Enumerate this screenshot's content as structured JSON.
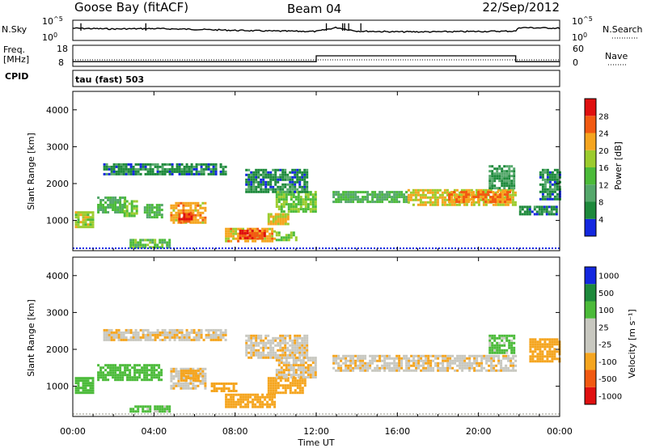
{
  "header": {
    "station": "Goose Bay (fitACF)",
    "beam": "Beam 04",
    "date": "22/Sep/2012"
  },
  "labels": {
    "nsky": "N.Sky",
    "nsearch": "N.Search",
    "freq": "Freq.",
    "mhz": "[MHz]",
    "nave": "Nave",
    "cpid": "CPID",
    "cpid_value": "tau (fast) 503",
    "ten": "10",
    "exp0": "0",
    "exp5": "^5",
    "freq_hi": "18",
    "freq_lo": "8",
    "nave_hi": "60",
    "nave_lo": "0",
    "xlabel": "Time UT",
    "power_cb_label": "Power [dB]",
    "velocity_cb_label": "Velocity [m s⁻¹]"
  },
  "colors": {
    "power_scale": [
      "#1428e0",
      "#1e8a3c",
      "#55a86b",
      "#4cbb3a",
      "#9ccc2e",
      "#f5a51f",
      "#f25a12",
      "#e01010"
    ],
    "velocity_scale": [
      "#e01010",
      "#f25a12",
      "#f5a51f",
      "#c8c8c0",
      "#c8c8c0",
      "#4cbb3a",
      "#1e8a3c",
      "#1428e0"
    ],
    "ground_scatter": "#c8c8c0"
  },
  "chart_data": [
    {
      "type": "line",
      "title": "N.Sky / N.Search",
      "x": [
        "00:00",
        "02:00",
        "04:00",
        "06:00",
        "08:00",
        "10:00",
        "12:00",
        "13:00",
        "14:00",
        "16:00",
        "18:00",
        "20:00",
        "21:50",
        "22:00",
        "24:00"
      ],
      "series": [
        {
          "name": "N.Sky",
          "log10_values": [
            3.2,
            3.0,
            3.1,
            2.9,
            2.6,
            2.4,
            2.3,
            3.4,
            2.4,
            2.2,
            2.2,
            2.3,
            2.4,
            3.4,
            3.2
          ]
        }
      ],
      "ylim_log10": [
        0,
        5
      ]
    },
    {
      "type": "line",
      "title": "Freq. / Nave",
      "series": [
        {
          "name": "Freq. [MHz]",
          "x": [
            "00:00",
            "12:00",
            "12:00",
            "21:50",
            "21:50",
            "24:00"
          ],
          "values": [
            10,
            10,
            13,
            13,
            10,
            10
          ]
        }
      ],
      "ylim": [
        8,
        18
      ]
    },
    {
      "type": "heatmap",
      "title": "Power",
      "xlabel": "Time UT",
      "ylabel": "Slant Range [km]",
      "xticks": [
        "00:00",
        "04:00",
        "08:00",
        "12:00",
        "16:00",
        "20:00",
        "00:00"
      ],
      "yticks": [
        1000,
        2000,
        3000,
        4000
      ],
      "xlim_hours": [
        0,
        24
      ],
      "ylim": [
        180,
        4500
      ],
      "colorbar": {
        "label": "Power [dB]",
        "ticks": [
          4,
          8,
          12,
          16,
          20,
          24,
          28
        ],
        "range": [
          0,
          32
        ]
      },
      "regions": [
        {
          "t0": 0.1,
          "t1": 1.0,
          "r0": 850,
          "r1": 1250,
          "level": 18
        },
        {
          "t0": 1.2,
          "t1": 2.6,
          "r0": 1250,
          "r1": 1650,
          "level": 12
        },
        {
          "t0": 2.5,
          "t1": 3.2,
          "r0": 1150,
          "r1": 1550,
          "level": 16
        },
        {
          "t0": 3.5,
          "t1": 4.4,
          "r0": 1100,
          "r1": 1450,
          "level": 12
        },
        {
          "t0": 4.8,
          "t1": 6.5,
          "r0": 950,
          "r1": 1500,
          "level": 22
        },
        {
          "t0": 5.2,
          "t1": 5.8,
          "r0": 1000,
          "r1": 1200,
          "level": 28
        },
        {
          "t0": 1.5,
          "t1": 7.5,
          "r0": 2250,
          "r1": 2550,
          "level": 6
        },
        {
          "t0": 2.8,
          "t1": 4.8,
          "r0": 280,
          "r1": 500,
          "level": 14
        },
        {
          "t0": 7.5,
          "t1": 10.0,
          "r0": 450,
          "r1": 800,
          "level": 22
        },
        {
          "t0": 8.2,
          "t1": 9.4,
          "r0": 550,
          "r1": 750,
          "level": 28
        },
        {
          "t0": 9.6,
          "t1": 10.6,
          "r0": 900,
          "r1": 1200,
          "level": 20
        },
        {
          "t0": 10.0,
          "t1": 11.0,
          "r0": 450,
          "r1": 700,
          "level": 16
        },
        {
          "t0": 10.0,
          "t1": 12.0,
          "r0": 1250,
          "r1": 1800,
          "level": 16
        },
        {
          "t0": 8.5,
          "t1": 11.5,
          "r0": 1800,
          "r1": 2400,
          "level": 6
        },
        {
          "t0": 12.8,
          "t1": 16.5,
          "r0": 1500,
          "r1": 1800,
          "level": 12
        },
        {
          "t0": 16.5,
          "t1": 21.8,
          "r0": 1450,
          "r1": 1850,
          "level": 20
        },
        {
          "t0": 18.5,
          "t1": 21.6,
          "r0": 1500,
          "r1": 1800,
          "level": 24
        },
        {
          "t0": 20.5,
          "t1": 21.8,
          "r0": 1900,
          "r1": 2500,
          "level": 8
        },
        {
          "t0": 22.0,
          "t1": 23.9,
          "r0": 1200,
          "r1": 1400,
          "level": 6
        },
        {
          "t0": 23.0,
          "t1": 24.0,
          "r0": 1600,
          "r1": 2400,
          "level": 6
        }
      ]
    },
    {
      "type": "heatmap",
      "title": "Velocity",
      "xlabel": "Time UT",
      "ylabel": "Slant Range [km]",
      "xticks": [
        "00:00",
        "04:00",
        "08:00",
        "12:00",
        "16:00",
        "20:00",
        "00:00"
      ],
      "yticks": [
        1000,
        2000,
        3000,
        4000
      ],
      "xlim_hours": [
        0,
        24
      ],
      "ylim": [
        180,
        4500
      ],
      "colorbar": {
        "label": "Velocity [m s⁻¹]",
        "ticks": [
          1000,
          500,
          100,
          25,
          -25,
          -100,
          -500,
          -1000
        ]
      },
      "regions": [
        {
          "t0": 0.1,
          "t1": 1.0,
          "r0": 850,
          "r1": 1250,
          "v": 200
        },
        {
          "t0": 1.2,
          "t1": 4.4,
          "r0": 1150,
          "r1": 1600,
          "v": 300
        },
        {
          "t0": 4.8,
          "t1": 6.5,
          "r0": 950,
          "r1": 1500,
          "v": 0
        },
        {
          "t0": 5.3,
          "t1": 6.2,
          "r0": 1150,
          "r1": 1450,
          "v": -150
        },
        {
          "t0": 1.5,
          "t1": 7.5,
          "r0": 2250,
          "r1": 2550,
          "v": 0
        },
        {
          "t0": 2.8,
          "t1": 4.8,
          "r0": 300,
          "r1": 480,
          "v": 150
        },
        {
          "t0": 6.8,
          "t1": 8.0,
          "r0": 900,
          "r1": 1100,
          "v": -200
        },
        {
          "t0": 7.5,
          "t1": 10.0,
          "r0": 450,
          "r1": 800,
          "v": -150
        },
        {
          "t0": 9.6,
          "t1": 11.5,
          "r0": 850,
          "r1": 1250,
          "v": -120
        },
        {
          "t0": 10.0,
          "t1": 12.0,
          "r0": 1250,
          "r1": 1800,
          "v": 0
        },
        {
          "t0": 8.5,
          "t1": 11.5,
          "r0": 1800,
          "r1": 2400,
          "v": 0
        },
        {
          "t0": 12.8,
          "t1": 21.8,
          "r0": 1450,
          "r1": 1850,
          "v": 0
        },
        {
          "t0": 20.5,
          "t1": 21.8,
          "r0": 1900,
          "r1": 2400,
          "v": 150
        },
        {
          "t0": 22.5,
          "t1": 24.0,
          "r0": 1700,
          "r1": 2300,
          "v": -300
        }
      ]
    }
  ]
}
